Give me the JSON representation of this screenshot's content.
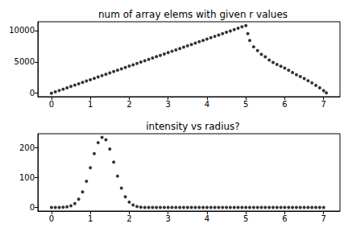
{
  "chart_data": [
    {
      "type": "scatter",
      "title": "num of array elems with given r values",
      "x": [
        0,
        0.1,
        0.2,
        0.3,
        0.4,
        0.5,
        0.6,
        0.7,
        0.8,
        0.9,
        1.0,
        1.1,
        1.2,
        1.3,
        1.4,
        1.5,
        1.6,
        1.7,
        1.8,
        1.9,
        2.0,
        2.1,
        2.2,
        2.3,
        2.4,
        2.5,
        2.6,
        2.7,
        2.8,
        2.9,
        3.0,
        3.1,
        3.2,
        3.3,
        3.4,
        3.5,
        3.6,
        3.7,
        3.8,
        3.9,
        4.0,
        4.1,
        4.2,
        4.3,
        4.4,
        4.5,
        4.6,
        4.7,
        4.8,
        4.9,
        5.0,
        5.05,
        5.1,
        5.2,
        5.3,
        5.4,
        5.5,
        5.6,
        5.7,
        5.8,
        5.9,
        6.0,
        6.1,
        6.2,
        6.3,
        6.4,
        6.5,
        6.6,
        6.7,
        6.8,
        6.9,
        7.0,
        7.07
      ],
      "values": [
        0,
        216,
        432,
        648,
        864,
        1080,
        1296,
        1512,
        1728,
        1944,
        2160,
        2376,
        2592,
        2808,
        3024,
        3240,
        3456,
        3672,
        3888,
        4104,
        4320,
        4536,
        4752,
        4968,
        5184,
        5400,
        5616,
        5832,
        6048,
        6264,
        6480,
        6696,
        6912,
        7128,
        7344,
        7560,
        7776,
        7992,
        8208,
        8424,
        8640,
        8856,
        9072,
        9288,
        9504,
        9720,
        9936,
        10152,
        10368,
        10584,
        10800,
        9500,
        8400,
        7400,
        6800,
        6200,
        5800,
        5300,
        4900,
        4600,
        4300,
        4000,
        3650,
        3300,
        2950,
        2650,
        2350,
        2000,
        1650,
        1250,
        850,
        400,
        50
      ],
      "xlim": [
        -0.35,
        7.42
      ],
      "ylim": [
        -550,
        11400
      ],
      "xticks": [
        0,
        1,
        2,
        3,
        4,
        5,
        6,
        7
      ],
      "yticks": [
        0,
        5000,
        10000
      ],
      "color": "#000000",
      "marker": "circle"
    },
    {
      "type": "scatter",
      "title": "intensity vs radius?",
      "x": [
        0,
        0.1,
        0.2,
        0.3,
        0.4,
        0.5,
        0.6,
        0.7,
        0.8,
        0.9,
        1.0,
        1.1,
        1.2,
        1.3,
        1.4,
        1.5,
        1.6,
        1.7,
        1.8,
        1.9,
        2.0,
        2.1,
        2.2,
        2.3,
        2.4,
        2.5,
        2.6,
        2.7,
        2.8,
        2.9,
        3.0,
        3.1,
        3.2,
        3.3,
        3.4,
        3.5,
        3.6,
        3.7,
        3.8,
        3.9,
        4.0,
        4.1,
        4.2,
        4.3,
        4.4,
        4.5,
        4.6,
        4.7,
        4.8,
        4.9,
        5.0,
        5.1,
        5.2,
        5.3,
        5.4,
        5.5,
        5.6,
        5.7,
        5.8,
        5.9,
        6.0,
        6.1,
        6.2,
        6.3,
        6.4,
        6.5,
        6.6,
        6.7,
        6.8,
        6.9,
        7.0
      ],
      "values": [
        0,
        0,
        0.2,
        0.7,
        2.1,
        5.6,
        13,
        28,
        52,
        88,
        133,
        180,
        217,
        235,
        227,
        196,
        152,
        105,
        65,
        36,
        18,
        8,
        3.2,
        1.1,
        0.3,
        0,
        0,
        0,
        0,
        0,
        0,
        0,
        0,
        0,
        0,
        0,
        0,
        0,
        0,
        0,
        0,
        0,
        0,
        0,
        0,
        0,
        0,
        0,
        0,
        0,
        0,
        0,
        0,
        0,
        0,
        0,
        0,
        0,
        0,
        0,
        0,
        0,
        0,
        0,
        0,
        0,
        0,
        0,
        0,
        0,
        0
      ],
      "xlim": [
        -0.35,
        7.42
      ],
      "ylim": [
        -12,
        247
      ],
      "xticks": [
        0,
        1,
        2,
        3,
        4,
        5,
        6,
        7
      ],
      "yticks": [
        0,
        100,
        200
      ],
      "color": "#000000",
      "marker": "circle"
    }
  ]
}
